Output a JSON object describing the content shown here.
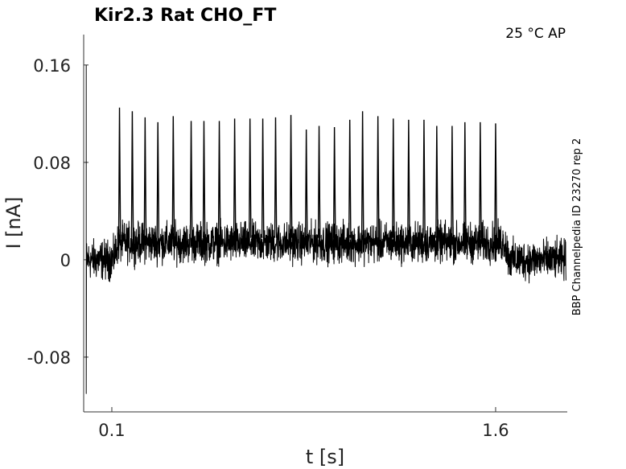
{
  "chart_data": {
    "type": "line",
    "title": "Kir2.3  Rat  CHO_FT",
    "condition": "25 °C  AP",
    "xlabel": "t [s]",
    "ylabel": "I [nA]",
    "side_label": "BBP Channelpedia ID 23270 rep 2",
    "xlim": [
      -0.01,
      1.88
    ],
    "ylim": [
      -0.125,
      0.185
    ],
    "x_ticks": [
      {
        "value": 0.1,
        "label": "0.1"
      },
      {
        "value": 1.6,
        "label": "1.6"
      }
    ],
    "y_ticks": [
      {
        "value": 0.16,
        "label": "0.16"
      },
      {
        "value": 0.08,
        "label": "0.08"
      },
      {
        "value": 0,
        "label": "0"
      },
      {
        "value": -0.08,
        "label": "-0.08"
      }
    ],
    "grid": false,
    "trace_color": "#000000",
    "baseline_holding": 0.0,
    "baseline_during_ramp": 0.014,
    "ramp_interval": [
      0.105,
      1.635
    ],
    "noise_amplitude": 0.012,
    "spike_times": [
      0.13,
      0.18,
      0.23,
      0.28,
      0.34,
      0.41,
      0.46,
      0.52,
      0.58,
      0.64,
      0.69,
      0.74,
      0.8,
      0.86,
      0.91,
      0.97,
      1.03,
      1.08,
      1.14,
      1.2,
      1.26,
      1.32,
      1.37,
      1.43,
      1.48,
      1.54,
      1.6
    ],
    "spike_peaks": [
      0.125,
      0.122,
      0.117,
      0.113,
      0.118,
      0.114,
      0.114,
      0.114,
      0.116,
      0.116,
      0.116,
      0.117,
      0.119,
      0.107,
      0.11,
      0.109,
      0.115,
      0.122,
      0.118,
      0.116,
      0.115,
      0.115,
      0.11,
      0.11,
      0.113,
      0.113,
      0.112
    ],
    "onset_transient": {
      "x": 0.0,
      "min": -0.11,
      "max": 0.16
    }
  }
}
